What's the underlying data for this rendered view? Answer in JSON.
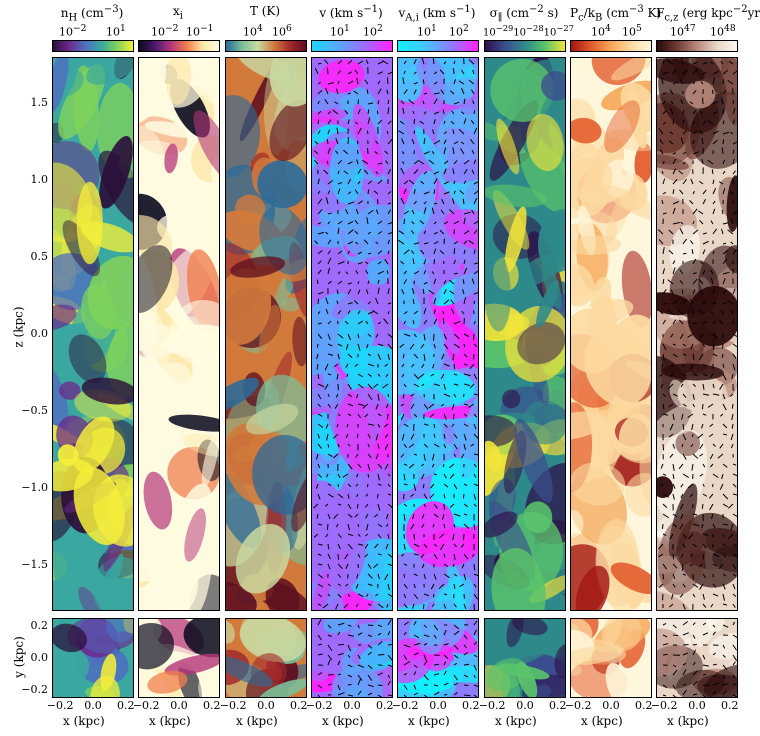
{
  "figure": {
    "columns": [
      {
        "key": "nH",
        "title": "n_H (cm^-3)",
        "ticks": [
          "10^-2",
          "10^1"
        ],
        "colors": [
          "#2b0e3a",
          "#6c2a8c",
          "#4f6fbf",
          "#3aa7a0",
          "#7fd35b",
          "#f4ef3a"
        ],
        "style": "clouds"
      },
      {
        "key": "xi",
        "title": "x_i",
        "ticks": [
          "10^-2",
          "10^-1"
        ],
        "colors": [
          "#0b0b20",
          "#4a1a6b",
          "#b5367a",
          "#f07f4f",
          "#fde7a8",
          "#fffbe0"
        ],
        "style": "sheet"
      },
      {
        "key": "T",
        "title": "T (K)",
        "ticks": [
          "10^4",
          "10^6"
        ],
        "colors": [
          "#2a6a9a",
          "#7bbf9a",
          "#c9d8a0",
          "#d27a3c",
          "#a22a2c",
          "#5e0f1e"
        ],
        "style": "flames"
      },
      {
        "key": "v",
        "title": "v (km s^-1)",
        "ticks": [
          "10^1",
          "10^2"
        ],
        "colors": [
          "#1cd7ff",
          "#5aa7ff",
          "#a06aff",
          "#ff22ff"
        ],
        "style": "vectors"
      },
      {
        "key": "vAi",
        "title": "v_A,i (km s^-1)",
        "ticks": [
          "10^1",
          "10^2"
        ],
        "colors": [
          "#11f0ff",
          "#42c6ff",
          "#8e7cff",
          "#ff22ff"
        ],
        "style": "vectors"
      },
      {
        "key": "sig",
        "title": "σ_∥ (cm^-2 s)",
        "ticks": [
          "10^-29",
          "10^-28",
          "10^-27"
        ],
        "colors": [
          "#2d0f4a",
          "#3b4d8e",
          "#2e8a8a",
          "#5ac46b",
          "#f1e43a"
        ],
        "style": "filaments"
      },
      {
        "key": "Pc",
        "title": "P_c/k_B (cm^-3 K)",
        "ticks": [
          "10^4",
          "10^5"
        ],
        "colors": [
          "#a21814",
          "#e2592a",
          "#f6a85a",
          "#fcd9a0",
          "#fff7dc"
        ],
        "style": "smooth"
      },
      {
        "key": "Fc",
        "title": "F_c,z (erg kpc^-2 yr^-1)",
        "ticks": [
          "10^47",
          "10^48"
        ],
        "colors": [
          "#2a0a0a",
          "#6c3a32",
          "#b9897c",
          "#e9d7c8",
          "#fbf7ee"
        ],
        "style": "vectors-light"
      }
    ],
    "top_y_axis": {
      "label": "z (kpc)",
      "ticks": [
        {
          "label": "1.5",
          "value": 1.5
        },
        {
          "label": "1.0",
          "value": 1.0
        },
        {
          "label": "0.5",
          "value": 0.5
        },
        {
          "label": "0.0",
          "value": 0.0
        },
        {
          "label": "−0.5",
          "value": -0.5
        },
        {
          "label": "−1.0",
          "value": -1.0
        },
        {
          "label": "−1.5",
          "value": -1.5
        }
      ],
      "range": [
        -1.8,
        1.8
      ]
    },
    "bottom_y_axis": {
      "label": "y (kpc)",
      "ticks": [
        {
          "label": "0.2",
          "value": 0.2
        },
        {
          "label": "0.0",
          "value": 0.0
        },
        {
          "label": "−0.2",
          "value": -0.2
        }
      ],
      "range": [
        -0.25,
        0.25
      ]
    },
    "x_axis": {
      "label": "x (kpc)",
      "ticks": [
        {
          "label": "−0.2",
          "value": -0.2
        },
        {
          "label": "0.0",
          "value": 0.0
        },
        {
          "label": "0.2",
          "value": 0.2
        }
      ],
      "range": [
        -0.25,
        0.25
      ]
    }
  }
}
